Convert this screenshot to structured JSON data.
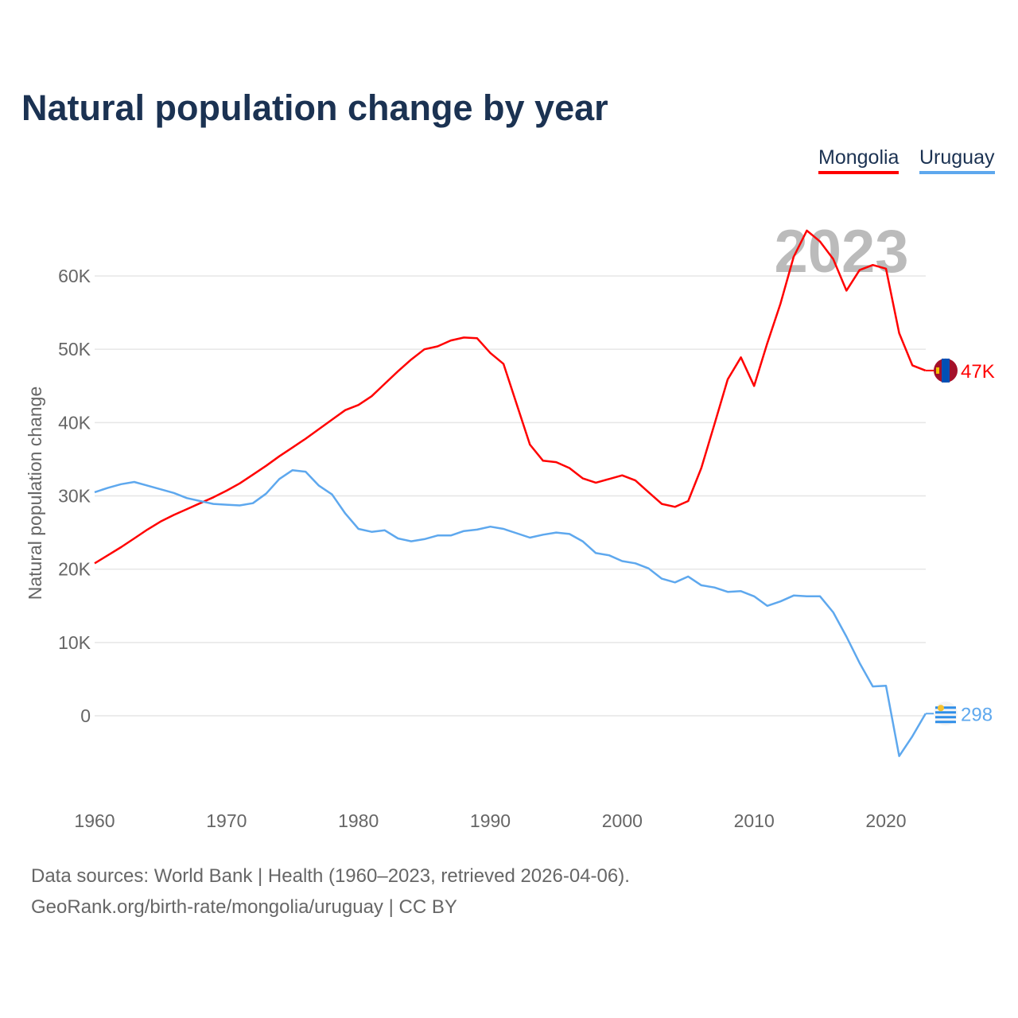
{
  "title": "Natural population change by year",
  "legend": [
    {
      "label": "Mongolia",
      "color": "#ff0000"
    },
    {
      "label": "Uruguay",
      "color": "#5ea8ee"
    }
  ],
  "year_watermark": "2023",
  "footer": {
    "line1": "Data sources: World Bank | Health (1960–2023, retrieved 2026-04-06).",
    "line2": "GeoRank.org/birth-rate/mongolia/uruguay | CC BY"
  },
  "chart_data": {
    "type": "line",
    "title": "Natural population change by year",
    "xlabel": "",
    "ylabel": "Natural population change",
    "xlim": [
      1960,
      2023
    ],
    "ylim": [
      -10000,
      70000
    ],
    "x_ticks": [
      "1960",
      "1970",
      "1980",
      "1990",
      "2000",
      "2010",
      "2020"
    ],
    "y_ticks": [
      {
        "v": 0,
        "label": "0"
      },
      {
        "v": 10000,
        "label": "10K"
      },
      {
        "v": 20000,
        "label": "20K"
      },
      {
        "v": 30000,
        "label": "30K"
      },
      {
        "v": 40000,
        "label": "40K"
      },
      {
        "v": 50000,
        "label": "50K"
      },
      {
        "v": 60000,
        "label": "60K"
      }
    ],
    "x": [
      1960,
      1961,
      1962,
      1963,
      1964,
      1965,
      1966,
      1967,
      1968,
      1969,
      1970,
      1971,
      1972,
      1973,
      1974,
      1975,
      1976,
      1977,
      1978,
      1979,
      1980,
      1981,
      1982,
      1983,
      1984,
      1985,
      1986,
      1987,
      1988,
      1989,
      1990,
      1991,
      1992,
      1993,
      1994,
      1995,
      1996,
      1997,
      1998,
      1999,
      2000,
      2001,
      2002,
      2003,
      2004,
      2005,
      2006,
      2007,
      2008,
      2009,
      2010,
      2011,
      2012,
      2013,
      2014,
      2015,
      2016,
      2017,
      2018,
      2019,
      2020,
      2021,
      2022,
      2023
    ],
    "series": [
      {
        "name": "Mongolia",
        "color": "#ff0000",
        "end_label": "47K",
        "values": [
          20800,
          21900,
          23000,
          24200,
          25400,
          26500,
          27400,
          28200,
          29000,
          29800,
          30700,
          31700,
          32900,
          34100,
          35400,
          36600,
          37800,
          39100,
          40400,
          41700,
          42400,
          43600,
          45300,
          47000,
          48600,
          50000,
          50400,
          51200,
          51600,
          51500,
          49500,
          48000,
          42500,
          37000,
          34800,
          34600,
          33800,
          32400,
          31800,
          32300,
          32800,
          32100,
          30500,
          28900,
          28500,
          29300,
          33800,
          39800,
          45900,
          48900,
          45000,
          50800,
          56200,
          62600,
          66200,
          64700,
          62300,
          58000,
          60800,
          61500,
          61000,
          52200,
          47800,
          47100
        ]
      },
      {
        "name": "Uruguay",
        "color": "#5ea8ee",
        "end_label": "298",
        "values": [
          30500,
          31100,
          31600,
          31900,
          31400,
          30900,
          30400,
          29700,
          29300,
          28900,
          28800,
          28700,
          29000,
          30300,
          32300,
          33500,
          33300,
          31400,
          30200,
          27600,
          25500,
          25100,
          25300,
          24200,
          23800,
          24100,
          24600,
          24600,
          25200,
          25400,
          25800,
          25500,
          24900,
          24300,
          24700,
          25000,
          24800,
          23800,
          22200,
          21900,
          21100,
          20800,
          20100,
          18700,
          18200,
          19000,
          17800,
          17500,
          16900,
          17000,
          16300,
          15000,
          15600,
          16400,
          16300,
          16300,
          14100,
          10800,
          7200,
          4000,
          4100,
          -5500,
          -2800,
          298
        ]
      }
    ],
    "grid": true,
    "legend_position": "top-right"
  }
}
